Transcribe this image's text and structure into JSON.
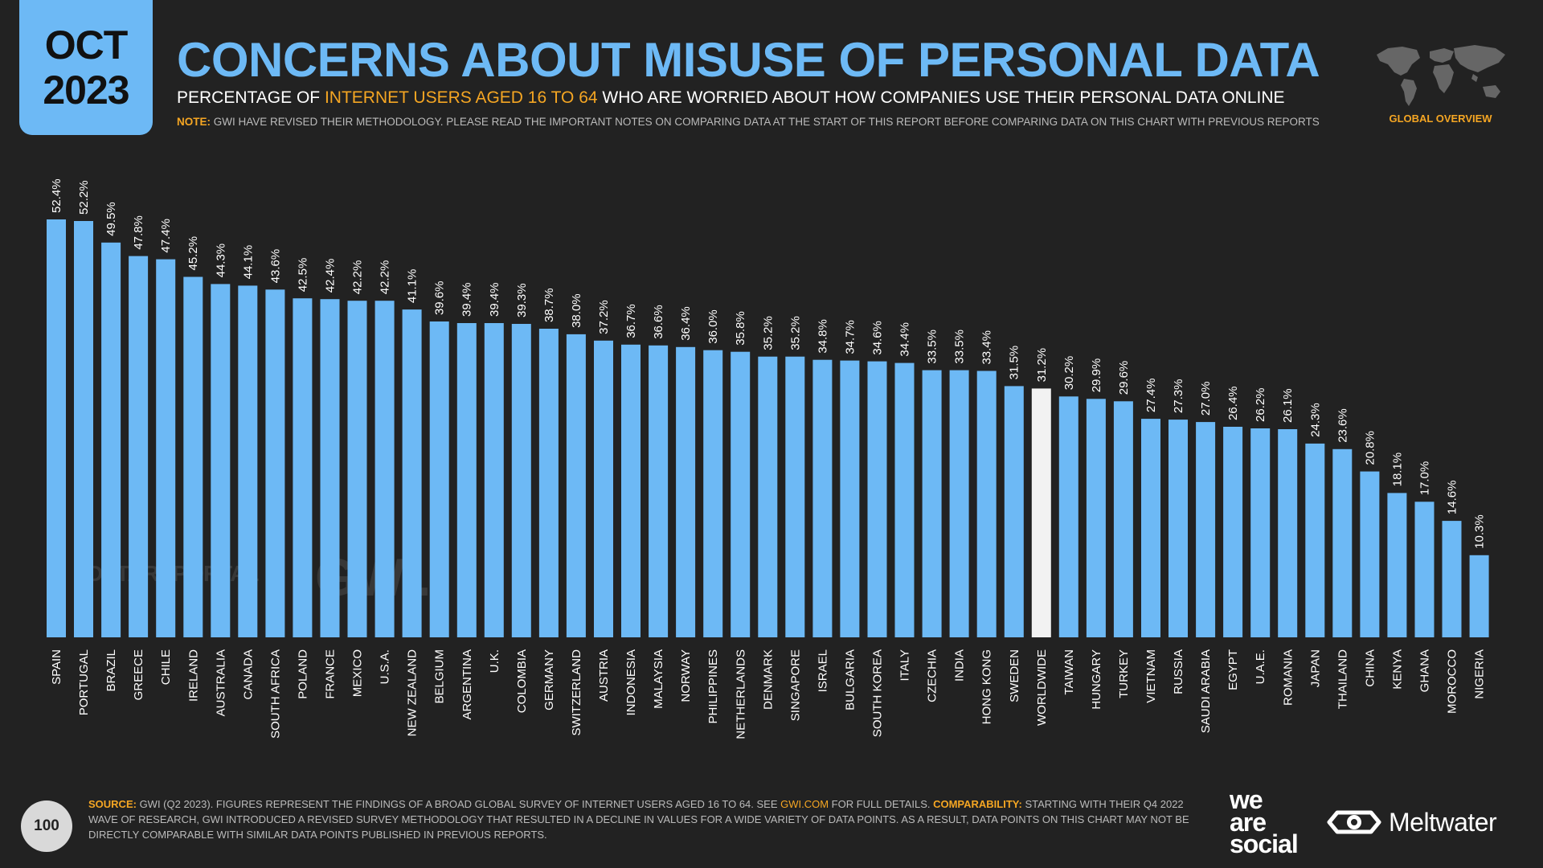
{
  "header": {
    "month": "OCT",
    "year": "2023",
    "title": "CONCERNS ABOUT MISUSE OF PERSONAL DATA",
    "subtitle_pre": "PERCENTAGE OF ",
    "subtitle_highlight": "INTERNET USERS AGED 16 TO 64",
    "subtitle_post": " WHO ARE WORRIED ABOUT HOW COMPANIES USE THEIR PERSONAL DATA ONLINE",
    "note_label": "NOTE:",
    "note_text": " GWI HAVE REVISED THEIR METHODOLOGY. PLEASE READ THE IMPORTANT NOTES ON COMPARING DATA AT THE START OF THIS REPORT BEFORE COMPARING DATA ON THIS CHART WITH PREVIOUS REPORTS",
    "section_label": "GLOBAL OVERVIEW"
  },
  "colors": {
    "accent": "#6db9f5",
    "highlight": "#f5a623",
    "bar": "#6db9f5",
    "bar_highlight": "#f2f2f2",
    "background": "#222222"
  },
  "watermarks": {
    "datareportal": "DATAREPORTAL",
    "gwi": "GWI."
  },
  "chart_data": {
    "type": "bar",
    "categories": [
      "SPAIN",
      "PORTUGAL",
      "BRAZIL",
      "GREECE",
      "CHILE",
      "IRELAND",
      "AUSTRALIA",
      "CANADA",
      "SOUTH AFRICA",
      "POLAND",
      "FRANCE",
      "MEXICO",
      "U.S.A.",
      "NEW ZEALAND",
      "BELGIUM",
      "ARGENTINA",
      "U.K.",
      "COLOMBIA",
      "GERMANY",
      "SWITZERLAND",
      "AUSTRIA",
      "INDONESIA",
      "MALAYSIA",
      "NORWAY",
      "PHILIPPINES",
      "NETHERLANDS",
      "DENMARK",
      "SINGAPORE",
      "ISRAEL",
      "BULGARIA",
      "SOUTH KOREA",
      "ITALY",
      "CZECHIA",
      "INDIA",
      "HONG KONG",
      "SWEDEN",
      "WORLDWIDE",
      "TAIWAN",
      "HUNGARY",
      "TURKEY",
      "VIETNAM",
      "RUSSIA",
      "SAUDI ARABIA",
      "EGYPT",
      "U.A.E.",
      "ROMANIA",
      "JAPAN",
      "THAILAND",
      "CHINA",
      "KENYA",
      "GHANA",
      "MOROCCO",
      "NIGERIA"
    ],
    "values": [
      52.4,
      52.2,
      49.5,
      47.8,
      47.4,
      45.2,
      44.3,
      44.1,
      43.6,
      42.5,
      42.4,
      42.2,
      42.2,
      41.1,
      39.6,
      39.4,
      39.4,
      39.3,
      38.7,
      38.0,
      37.2,
      36.7,
      36.6,
      36.4,
      36.0,
      35.8,
      35.2,
      35.2,
      34.8,
      34.7,
      34.6,
      34.4,
      33.5,
      33.5,
      33.4,
      31.5,
      31.2,
      30.2,
      29.9,
      29.6,
      27.4,
      27.3,
      27.0,
      26.4,
      26.2,
      26.1,
      24.3,
      23.6,
      20.8,
      18.1,
      17.0,
      14.6,
      10.3
    ],
    "value_labels": [
      "52.4%",
      "52.2%",
      "49.5%",
      "47.8%",
      "47.4%",
      "45.2%",
      "44.3%",
      "44.1%",
      "43.6%",
      "42.5%",
      "42.4%",
      "42.2%",
      "42.2%",
      "41.1%",
      "39.6%",
      "39.4%",
      "39.4%",
      "39.3%",
      "38.7%",
      "38.0%",
      "37.2%",
      "36.7%",
      "36.6%",
      "36.4%",
      "36.0%",
      "35.8%",
      "35.2%",
      "35.2%",
      "34.8%",
      "34.7%",
      "34.6%",
      "34.4%",
      "33.5%",
      "33.5%",
      "33.4%",
      "31.5%",
      "31.2%",
      "30.2%",
      "29.9%",
      "29.6%",
      "27.4%",
      "27.3%",
      "27.0%",
      "26.4%",
      "26.2%",
      "26.1%",
      "24.3%",
      "23.6%",
      "20.8%",
      "18.1%",
      "17.0%",
      "14.6%",
      "10.3%"
    ],
    "highlight_category": "WORLDWIDE",
    "ylim": [
      0,
      52.4
    ],
    "grid": false,
    "legend": "none",
    "title": "CONCERNS ABOUT MISUSE OF PERSONAL DATA",
    "xlabel": "",
    "ylabel": ""
  },
  "footer": {
    "page_number": "100",
    "source_label": "SOURCE:",
    "source_text_1": " GWI (Q2 2023). FIGURES REPRESENT THE FINDINGS OF A BROAD GLOBAL SURVEY OF INTERNET USERS AGED 16 TO 64. SEE ",
    "source_link": "GWI.COM",
    "source_text_2": " FOR FULL DETAILS. ",
    "comparability_label": "COMPARABILITY:",
    "comparability_text": " STARTING WITH THEIR Q4 2022 WAVE OF RESEARCH, GWI INTRODUCED A REVISED SURVEY METHODOLOGY THAT RESULTED IN A DECLINE IN VALUES FOR A WIDE VARIETY OF DATA POINTS. AS A RESULT, DATA POINTS ON THIS CHART MAY NOT BE DIRECTLY COMPARABLE WITH SIMILAR DATA POINTS PUBLISHED IN PREVIOUS REPORTS.",
    "logo_we": "we",
    "logo_are": "are",
    "logo_social": "social",
    "logo_meltwater": "Meltwater"
  }
}
